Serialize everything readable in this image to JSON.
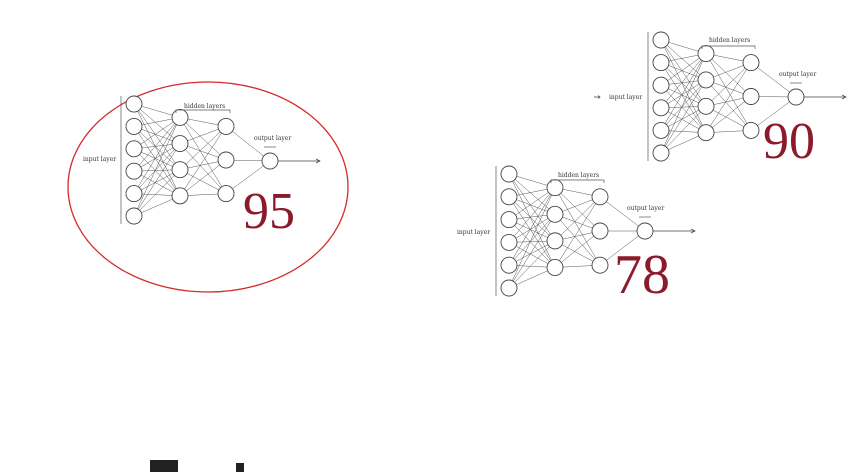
{
  "networks": [
    {
      "id": "net-a",
      "labels": {
        "input": "input layer",
        "hidden": "hidden layers",
        "output": "output layer"
      },
      "score": "95",
      "highlighted": true,
      "layer_sizes": [
        6,
        4,
        3,
        1
      ]
    },
    {
      "id": "net-b",
      "labels": {
        "input": "input layer",
        "hidden": "hidden layers",
        "output": "output layer"
      },
      "score": "90",
      "highlighted": false,
      "layer_sizes": [
        6,
        4,
        3,
        1
      ]
    },
    {
      "id": "net-c",
      "labels": {
        "input": "input layer",
        "hidden": "hidden layers",
        "output": "output layer"
      },
      "score": "78",
      "highlighted": false,
      "layer_sizes": [
        6,
        4,
        3,
        1
      ]
    }
  ],
  "colors": {
    "score": "#8b1a2b",
    "highlight_ellipse": "#d42a2a"
  }
}
